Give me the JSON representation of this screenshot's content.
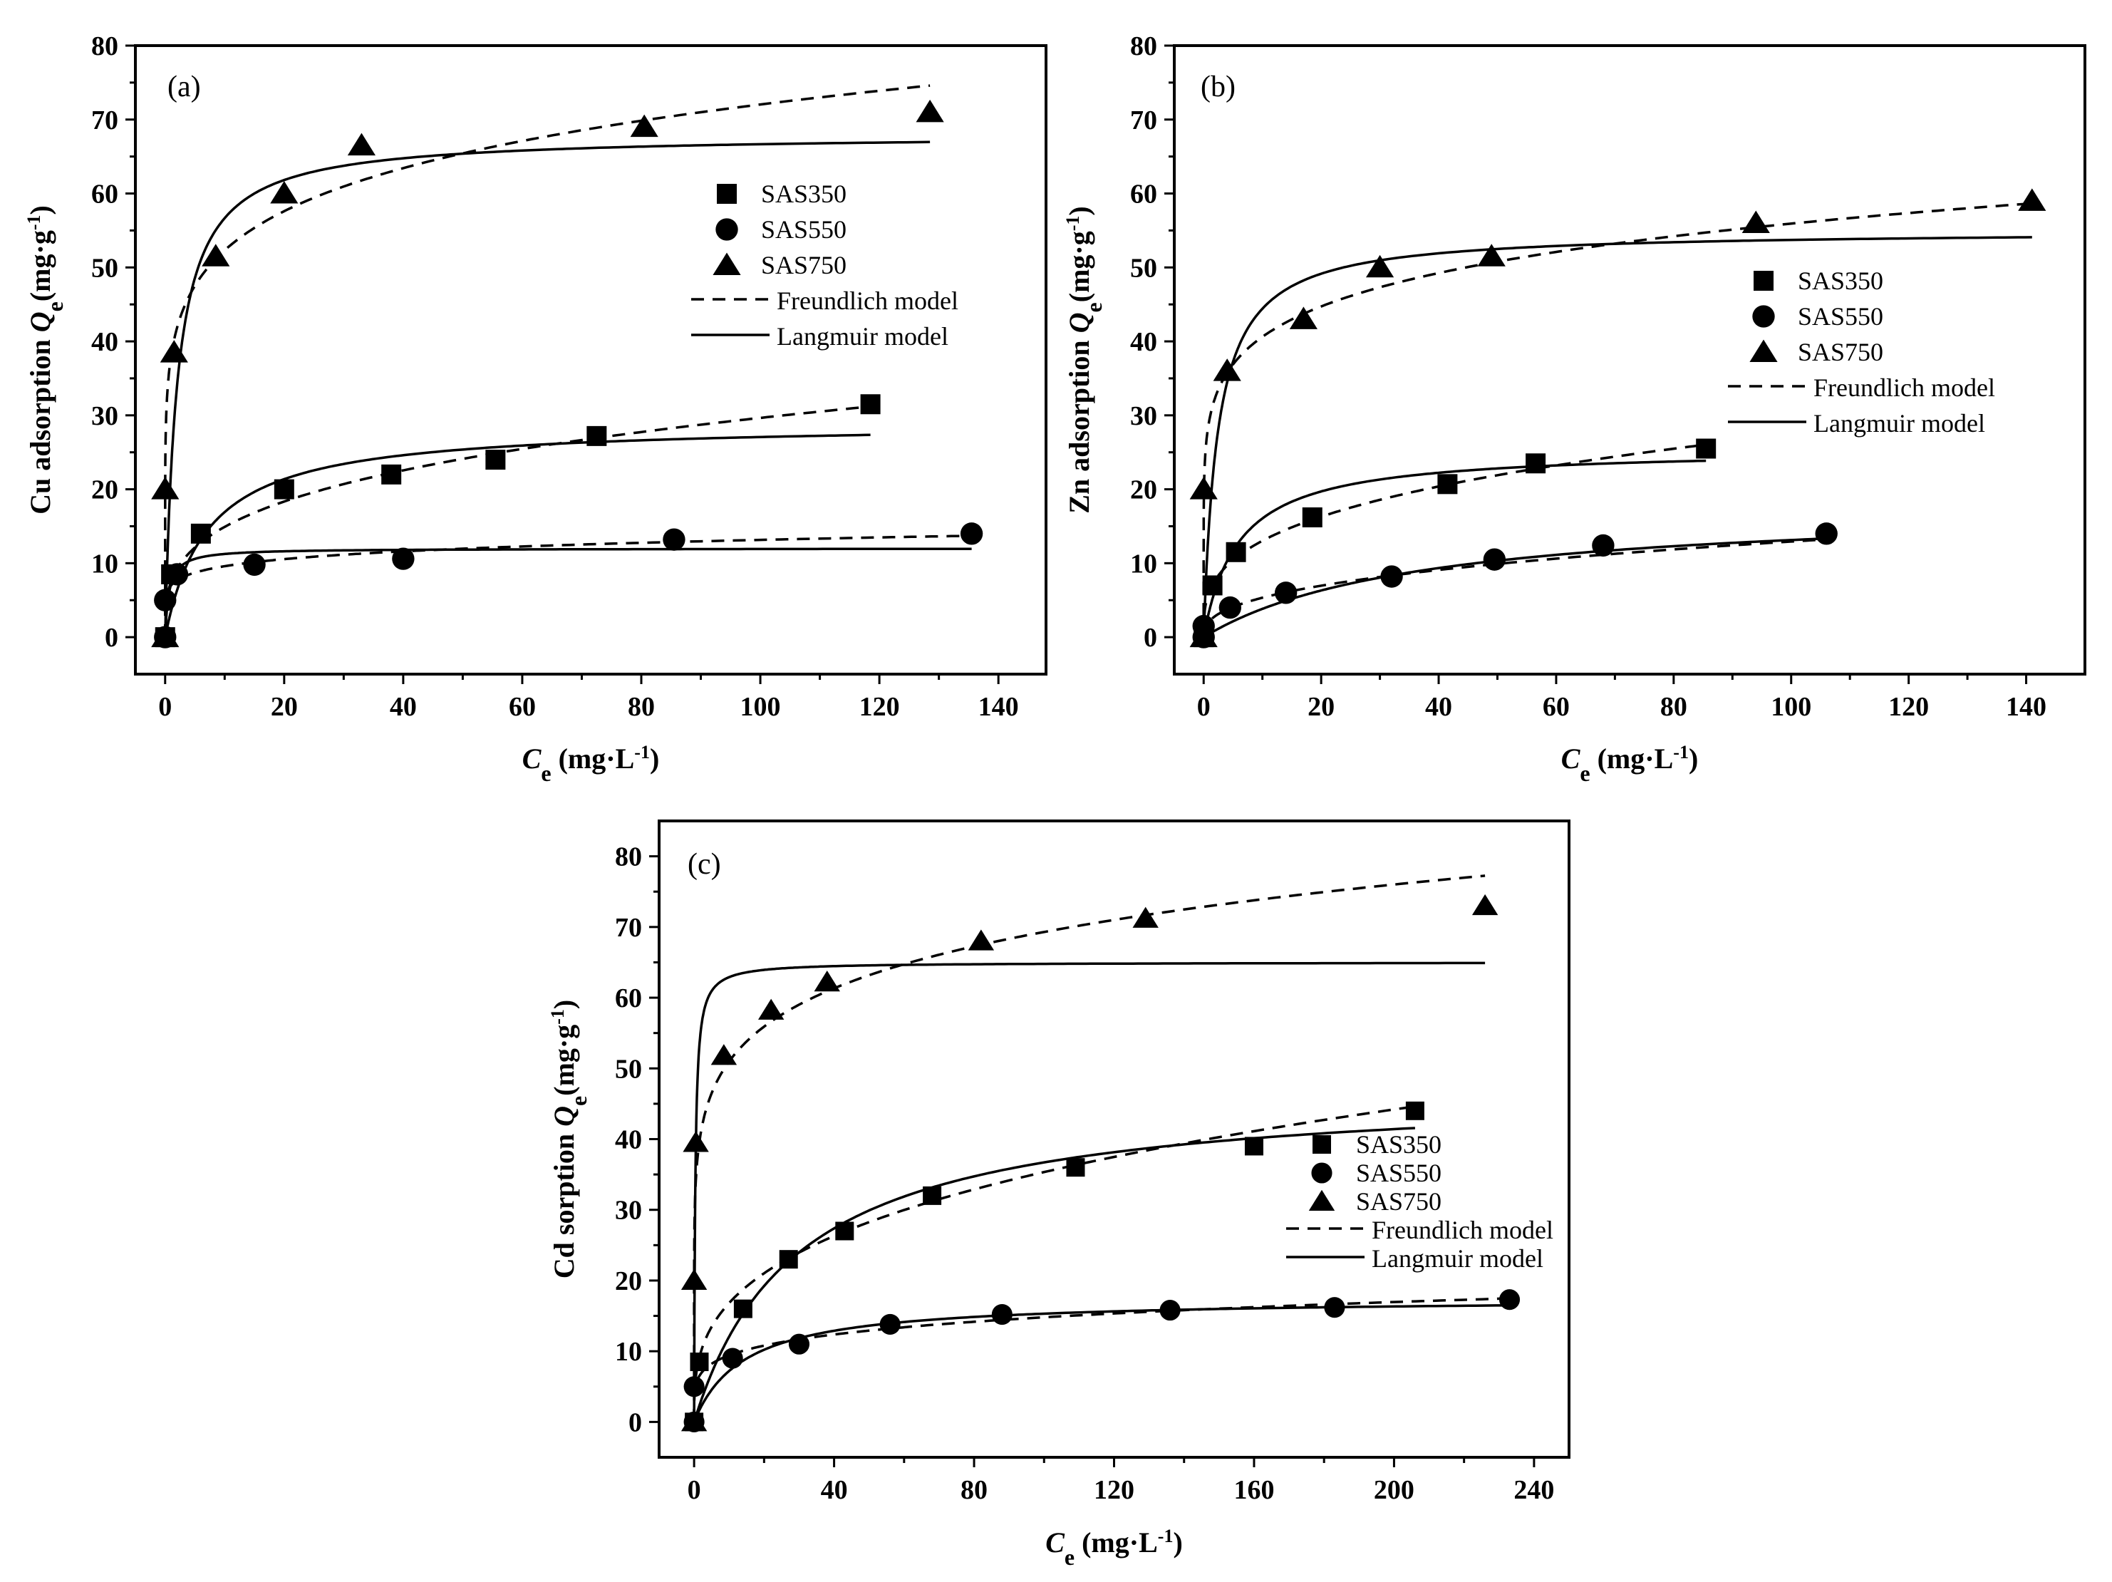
{
  "chart_data": [
    {
      "panel": "(a)",
      "type": "scatter",
      "ylabel_prefix": "Cu adsorption ",
      "ylabel_sym": "Q",
      "ylabel_sub": "e",
      "ylabel_unit": "(mg·g",
      "ylabel_exp": "-1",
      "ylabel_close": ")",
      "xlabel_sym": "C",
      "xlabel_sub": "e",
      "xlabel_unit": " (mg·L",
      "xlabel_exp": "-1",
      "xlabel_close": ")",
      "xlim": [
        -5,
        148
      ],
      "ylim": [
        -5,
        80
      ],
      "xticks": [
        "0",
        "20",
        "40",
        "60",
        "80",
        "100",
        "120",
        "140"
      ],
      "yticks": [
        "0",
        "10",
        "20",
        "30",
        "40",
        "50",
        "60",
        "70",
        "80"
      ],
      "legend": [
        "SAS350",
        "SAS550",
        "SAS750",
        "Freundlich model",
        "Langmuir  model"
      ],
      "series": [
        {
          "name": "SAS350",
          "marker": "square",
          "points": [
            [
              0,
              0
            ],
            [
              1,
              8.5
            ],
            [
              6,
              14
            ],
            [
              20,
              20
            ],
            [
              38,
              22
            ],
            [
              55.5,
              24
            ],
            [
              72.5,
              27.2
            ],
            [
              118.5,
              31.5
            ]
          ]
        },
        {
          "name": "SAS550",
          "marker": "circle",
          "points": [
            [
              0,
              0
            ],
            [
              0,
              5
            ],
            [
              2,
              8.5
            ],
            [
              15,
              9.8
            ],
            [
              40,
              10.6
            ],
            [
              85.5,
              13.2
            ],
            [
              135.5,
              14
            ]
          ]
        },
        {
          "name": "SAS750",
          "marker": "triangle",
          "points": [
            [
              0,
              0
            ],
            [
              0,
              20
            ],
            [
              1.5,
              38.5
            ],
            [
              8.5,
              51.5
            ],
            [
              20,
              60
            ],
            [
              33,
              66.5
            ],
            [
              80.5,
              69
            ],
            [
              128.5,
              71
            ]
          ]
        }
      ],
      "fits": [
        {
          "name": "SAS350 Freundlich",
          "model": "freundlich",
          "params": {
            "KF": 7.5,
            "n": 3.35
          },
          "x_range": [
            0,
            118.5
          ]
        },
        {
          "name": "SAS350 Langmuir",
          "model": "langmuir",
          "params": {
            "Qm": 29,
            "KL": 0.14
          },
          "x_range": [
            0,
            118.5
          ]
        },
        {
          "name": "SAS550 Freundlich",
          "model": "freundlich",
          "params": {
            "KF": 7.0,
            "n": 7.3
          },
          "x_range": [
            0,
            135.5
          ]
        },
        {
          "name": "SAS550 Langmuir",
          "model": "langmuir",
          "params": {
            "Qm": 12,
            "KL": 1.5
          },
          "x_range": [
            0,
            135.5
          ]
        },
        {
          "name": "SAS750 Freundlich",
          "model": "freundlich",
          "params": {
            "KF": 38.0,
            "n": 7.2
          },
          "x_range": [
            0,
            128.5
          ]
        },
        {
          "name": "SAS750 Langmuir",
          "model": "langmuir",
          "params": {
            "Qm": 68,
            "KL": 0.5
          },
          "x_range": [
            0,
            128.5
          ]
        }
      ]
    },
    {
      "panel": "(b)",
      "type": "scatter",
      "ylabel_prefix": "Zn adsorption ",
      "ylabel_sym": "Q",
      "ylabel_sub": "e",
      "ylabel_unit": "(mg·g",
      "ylabel_exp": "-1",
      "ylabel_close": ")",
      "xlabel_sym": "C",
      "xlabel_sub": "e",
      "xlabel_unit": " (mg·L",
      "xlabel_exp": "-1",
      "xlabel_close": ")",
      "xlim": [
        -5,
        150
      ],
      "ylim": [
        -5,
        80
      ],
      "xticks": [
        "0",
        "20",
        "40",
        "60",
        "80",
        "100",
        "120",
        "140"
      ],
      "yticks": [
        "0",
        "10",
        "20",
        "30",
        "40",
        "50",
        "60",
        "70",
        "80"
      ],
      "legend": [
        "SAS350",
        "SAS550",
        "SAS750",
        "Freundlich model",
        "Langmuir  model"
      ],
      "series": [
        {
          "name": "SAS350",
          "marker": "square",
          "points": [
            [
              0,
              0
            ],
            [
              1.5,
              7
            ],
            [
              5.5,
              11.5
            ],
            [
              18.5,
              16.2
            ],
            [
              41.5,
              20.7
            ],
            [
              56.5,
              23.5
            ],
            [
              85.5,
              25.5
            ]
          ]
        },
        {
          "name": "SAS550",
          "marker": "circle",
          "points": [
            [
              0,
              0
            ],
            [
              0,
              1.5
            ],
            [
              4.5,
              4
            ],
            [
              14,
              6
            ],
            [
              32,
              8.2
            ],
            [
              49.5,
              10.5
            ],
            [
              68,
              12.4
            ],
            [
              106,
              14
            ]
          ]
        },
        {
          "name": "SAS750",
          "marker": "triangle",
          "points": [
            [
              0,
              0
            ],
            [
              0,
              20
            ],
            [
              4,
              36
            ],
            [
              17,
              43
            ],
            [
              30,
              50
            ],
            [
              49,
              51.5
            ],
            [
              94,
              56
            ],
            [
              141,
              59
            ]
          ]
        }
      ],
      "fits": [
        {
          "name": "SAS350 Freundlich",
          "model": "freundlich",
          "params": {
            "KF": 6.2,
            "n": 3.1
          },
          "x_range": [
            0,
            85.5
          ]
        },
        {
          "name": "SAS350 Langmuir",
          "model": "langmuir",
          "params": {
            "Qm": 25.5,
            "KL": 0.17
          },
          "x_range": [
            0,
            85.5
          ]
        },
        {
          "name": "SAS550 Freundlich",
          "model": "freundlich",
          "params": {
            "KF": 2.2,
            "n": 2.6
          },
          "x_range": [
            0,
            106
          ]
        },
        {
          "name": "SAS550 Langmuir",
          "model": "langmuir",
          "params": {
            "Qm": 18,
            "KL": 0.027
          },
          "x_range": [
            0,
            106
          ]
        },
        {
          "name": "SAS750 Freundlich",
          "model": "freundlich",
          "params": {
            "KF": 29.5,
            "n": 7.2
          },
          "x_range": [
            0,
            141
          ]
        },
        {
          "name": "SAS750 Langmuir",
          "model": "langmuir",
          "params": {
            "Qm": 55,
            "KL": 0.42
          },
          "x_range": [
            0,
            141
          ]
        }
      ]
    },
    {
      "panel": "(c)",
      "type": "scatter",
      "ylabel_prefix": "Cd sorption ",
      "ylabel_sym": "Q",
      "ylabel_sub": "e",
      "ylabel_unit": "(mg·g",
      "ylabel_exp": "-1",
      "ylabel_close": ")",
      "xlabel_sym": "C",
      "xlabel_sub": "e",
      "xlabel_unit": " (mg·L",
      "xlabel_exp": "-1",
      "xlabel_close": ")",
      "xlim": [
        -10,
        250
      ],
      "ylim": [
        -5,
        85
      ],
      "xticks": [
        "0",
        "40",
        "80",
        "120",
        "160",
        "200",
        "240"
      ],
      "yticks": [
        "0",
        "10",
        "20",
        "30",
        "40",
        "50",
        "60",
        "70",
        "80"
      ],
      "legend": [
        "SAS350",
        "SAS550",
        "SAS750",
        "Freundlich model",
        "Langmuir   model"
      ],
      "series": [
        {
          "name": "SAS350",
          "marker": "square",
          "points": [
            [
              0,
              0
            ],
            [
              1.5,
              8.5
            ],
            [
              14,
              16
            ],
            [
              27,
              23
            ],
            [
              43,
              27
            ],
            [
              68,
              32
            ],
            [
              109,
              36
            ],
            [
              160,
              39
            ],
            [
              206,
              44
            ]
          ]
        },
        {
          "name": "SAS550",
          "marker": "circle",
          "points": [
            [
              0,
              0
            ],
            [
              0,
              5
            ],
            [
              11,
              9
            ],
            [
              30,
              11
            ],
            [
              56,
              13.8
            ],
            [
              88,
              15.2
            ],
            [
              136,
              15.8
            ],
            [
              183,
              16.2
            ],
            [
              233,
              17.3
            ]
          ]
        },
        {
          "name": "SAS750",
          "marker": "triangle",
          "points": [
            [
              0,
              0
            ],
            [
              0,
              20
            ],
            [
              0.5,
              39.5
            ],
            [
              8.5,
              51.8
            ],
            [
              22,
              58.2
            ],
            [
              38,
              62.2
            ],
            [
              82,
              68
            ],
            [
              129,
              71.2
            ],
            [
              226,
              73
            ]
          ]
        }
      ],
      "fits": [
        {
          "name": "SAS350 Freundlich",
          "model": "freundlich",
          "params": {
            "KF": 8.0,
            "n": 3.1
          },
          "x_range": [
            0,
            206
          ]
        },
        {
          "name": "SAS350 Langmuir",
          "model": "langmuir",
          "params": {
            "Qm": 47.5,
            "KL": 0.034
          },
          "x_range": [
            0,
            206
          ]
        },
        {
          "name": "SAS550 Freundlich",
          "model": "freundlich",
          "params": {
            "KF": 6.0,
            "n": 5.1
          },
          "x_range": [
            0,
            233
          ]
        },
        {
          "name": "SAS550 Langmuir",
          "model": "langmuir",
          "params": {
            "Qm": 17.5,
            "KL": 0.07
          },
          "x_range": [
            0,
            233
          ]
        },
        {
          "name": "SAS750 Freundlich",
          "model": "freundlich",
          "params": {
            "KF": 37.5,
            "n": 7.5
          },
          "x_range": [
            0,
            226
          ]
        },
        {
          "name": "SAS750 Langmuir",
          "model": "langmuir",
          "params": {
            "Qm": 65,
            "KL": 3.0
          },
          "x_range": [
            0,
            226
          ]
        }
      ]
    }
  ]
}
